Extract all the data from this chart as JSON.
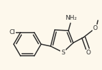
{
  "background_color": "#fdf8ec",
  "bond_color": "#2a2a2a",
  "lw": 1.1,
  "figsize": [
    1.49,
    1.03
  ],
  "dpi": 100,
  "xlim": [
    0,
    149
  ],
  "ylim": [
    0,
    103
  ]
}
